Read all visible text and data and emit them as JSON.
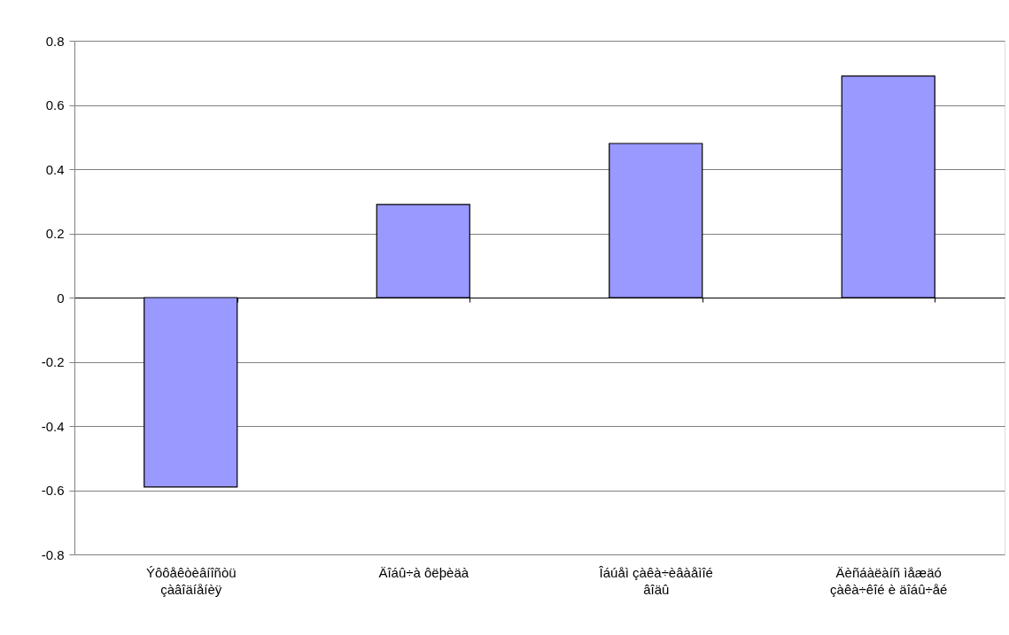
{
  "chart_data": {
    "type": "bar",
    "categories": [
      "Ýôôåêòèâíîñòü çàâîäíåíèÿ",
      "Äîáû÷à ôëþèäà",
      "Îáúåì çàêà÷èâàåìîé âîäû",
      "Äèñáàëàíñ ìåæäó çàêà÷êîé è äîáû÷åé"
    ],
    "values": [
      -0.59,
      0.29,
      0.48,
      0.69
    ],
    "color": "#9999ff",
    "ylim": [
      -0.8,
      0.8
    ],
    "yticks": [
      -0.8,
      -0.6,
      -0.4,
      -0.2,
      0,
      0.2,
      0.4,
      0.6,
      0.8
    ],
    "grid": "y"
  }
}
